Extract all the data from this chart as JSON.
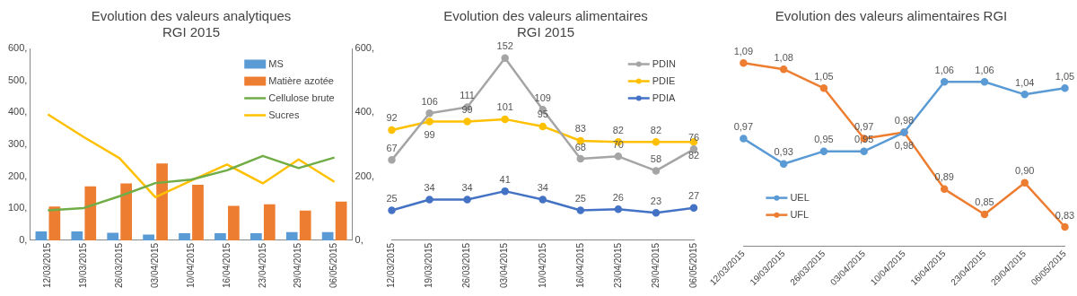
{
  "chart_data": [
    {
      "type": "bar",
      "title": "Evolution des valeurs analytiques",
      "subtitle": "RGI 2015",
      "categories": [
        "12/03/2015",
        "19/03/2015",
        "26/03/2015",
        "03/04/2015",
        "10/04/2015",
        "16/04/2015",
        "23/04/2015",
        "29/04/2015",
        "06/05/2015"
      ],
      "series": [
        {
          "name": "MS",
          "color": "#5b9bd5",
          "values": [
            28,
            28,
            24,
            18,
            22,
            22,
            22,
            26,
            26
          ]
        },
        {
          "name": "Matière azotée",
          "color": "#ed7d31",
          "values": [
            106,
            169,
            178,
            240,
            174,
            108,
            113,
            93,
            121
          ]
        },
        {
          "name": "Cellulose brute",
          "type": "line",
          "axis": "y2",
          "color": "#70ad47",
          "values": [
            94,
            101,
            138,
            179,
            190,
            219,
            264,
            226,
            259
          ]
        },
        {
          "name": "Sucres",
          "type": "line",
          "axis": "y2",
          "color": "#ffc000",
          "values": [
            394,
            323,
            257,
            135,
            187,
            237,
            178,
            253,
            183
          ]
        }
      ],
      "ylim": [
        0,
        600
      ],
      "yticks": [
        {
          "value": 0,
          "label": "0,"
        },
        {
          "value": 100,
          "label": "100,"
        },
        {
          "value": 200,
          "label": "200,"
        },
        {
          "value": 300,
          "label": "300,"
        },
        {
          "value": 400,
          "label": "400,"
        },
        {
          "value": 500,
          "label": "500,"
        },
        {
          "value": 600,
          "label": "600,"
        }
      ],
      "y2lim": [
        0,
        600
      ],
      "y2ticks": [
        {
          "value": 0,
          "label": "0,"
        },
        {
          "value": 200,
          "label": "200,"
        },
        {
          "value": 400,
          "label": "400,"
        },
        {
          "value": 600,
          "label": "600,"
        }
      ],
      "grid": false,
      "legend": "top right"
    },
    {
      "type": "line",
      "title": "Evolution des valeurs alimentaires",
      "subtitle": "RGI 2015",
      "categories": [
        "12/03/2015",
        "19/03/2015",
        "26/03/2015",
        "03/04/2015",
        "10/04/2015",
        "16/04/2015",
        "23/04/2015",
        "29/04/2015",
        "06/05/2015"
      ],
      "series": [
        {
          "name": "PDIN",
          "color": "#a5a5a5",
          "values": [
            67,
            106,
            111,
            152,
            109,
            68,
            70,
            58,
            76
          ]
        },
        {
          "name": "PDIE",
          "color": "#ffc000",
          "values": [
            92,
            99,
            99,
            101,
            95,
            83,
            82,
            82,
            82
          ]
        },
        {
          "name": "PDIA",
          "color": "#4472c4",
          "values": [
            25,
            34,
            34,
            41,
            34,
            25,
            26,
            23,
            27
          ]
        }
      ],
      "data_labels": true,
      "marker": "circle",
      "tick_labels": "x",
      "grid": false,
      "legend": "top right"
    },
    {
      "type": "line",
      "title": "Evolution des valeurs alimentaires RGI",
      "categories": [
        "12/03/2015",
        "19/03/2015",
        "26/03/2015",
        "03/04/2015",
        "10/04/2015",
        "16/04/2015",
        "23/04/2015",
        "29/04/2015",
        "06/05/2015"
      ],
      "series": [
        {
          "name": "UEL",
          "color": "#5b9bd5",
          "values": [
            0.97,
            0.93,
            0.95,
            0.95,
            0.98,
            1.06,
            1.06,
            1.04,
            1.05
          ],
          "value_labels": [
            "0,97",
            "0,93",
            "0,95",
            "0,95",
            "0,98",
            "1,06",
            "1,06",
            "1,04",
            "1,05"
          ]
        },
        {
          "name": "UFL",
          "color": "#ed7d31",
          "values": [
            1.09,
            1.08,
            1.05,
            0.97,
            0.98,
            0.89,
            0.85,
            0.9,
            0.83
          ],
          "value_labels": [
            "1,09",
            "1,08",
            "1,05",
            "0,97",
            "0,98",
            "0,89",
            "0,85",
            "0,90",
            "0,83"
          ]
        }
      ],
      "marker": "circle",
      "tick_labels": "x",
      "grid": false,
      "legend": "bottom left"
    }
  ]
}
